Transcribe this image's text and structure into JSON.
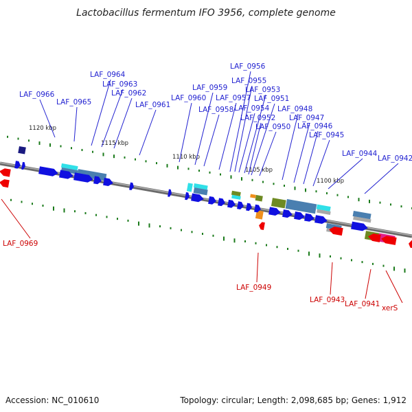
{
  "title": "Lactobacillus fermentum IFO 3956, complete genome",
  "footer": {
    "accession": "Accession: NC_010610",
    "summary": "Topology: circular; Length: 2,098,685 bp; Genes: 1,912"
  },
  "ticks": [
    "1120 kbp",
    "1115 kbp",
    "1110 kbp",
    "1105 kbp",
    "1100 kbp"
  ],
  "labels_plus": [
    "LAF_0966",
    "LAF_0965",
    "LAF_0964",
    "LAF_0963",
    "LAF_0962",
    "LAF_0961",
    "LAF_0960",
    "LAF_0959",
    "LAF_0958",
    "LAF_0957",
    "LAF_0956",
    "LAF_0955",
    "LAF_0954",
    "LAF_0953",
    "LAF_0952",
    "LAF_0951",
    "LAF_0950",
    "LAF_0948",
    "LAF_0947",
    "LAF_0946",
    "LAF_0945",
    "LAF_0944",
    "LAF_0942"
  ],
  "labels_minus": [
    "LAF_0969",
    "LAF_0949",
    "LAF_0943",
    "LAF_0941",
    "xerS"
  ],
  "colors": {
    "plus_label": "#1f1fd0",
    "minus_label": "#cc0000",
    "backbone": "#888888",
    "plus_gene": "#1010e0",
    "minus_gene": "#ee0000",
    "gc_tick": "#1a7a1a",
    "cog_steel": "#4a7fb0",
    "cog_cyan": "#30e0e8",
    "cog_olive": "#6e8a22",
    "cog_orange": "#f0901c",
    "cog_magenta": "#e0208a",
    "cog_navy": "#1a1a80",
    "cog_grey": "#a8a8a8"
  }
}
